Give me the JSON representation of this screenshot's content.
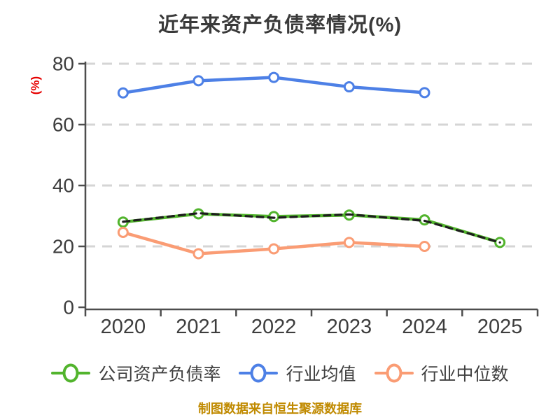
{
  "title": "近年来资产负债率情况(%)",
  "y_axis": {
    "label": "(%)",
    "label_color": "#e60000",
    "ticks": [
      0,
      20,
      40,
      60,
      80
    ],
    "max": 80
  },
  "x_axis": {
    "categories": [
      "2020",
      "2021",
      "2022",
      "2023",
      "2024",
      "2025"
    ]
  },
  "chart_data": {
    "type": "line",
    "title": "近年来资产负债率情况(%)",
    "categories": [
      "2020",
      "2021",
      "2022",
      "2023",
      "2024",
      "2025"
    ],
    "series": [
      {
        "name": "公司资产负债率",
        "color": "#52b42d",
        "values": [
          28.0,
          30.7,
          29.8,
          30.3,
          28.7,
          21.3
        ],
        "style": "solid",
        "marker": true,
        "in_legend": true
      },
      {
        "name": "unlabeled-dashed-overlay",
        "color": "#1d1d1d",
        "values": [
          28.1,
          30.9,
          29.4,
          30.5,
          28.4,
          21.3
        ],
        "style": "dashed",
        "marker": false,
        "in_legend": false
      },
      {
        "name": "行业均值",
        "color": "#4d80e6",
        "values": [
          70.4,
          74.4,
          75.5,
          72.4,
          70.5,
          null
        ],
        "style": "solid",
        "marker": true,
        "in_legend": true
      },
      {
        "name": "行业中位数",
        "color": "#fa9c74",
        "values": [
          24.6,
          17.6,
          19.2,
          21.3,
          20.0,
          null
        ],
        "style": "solid",
        "marker": true,
        "in_legend": true
      }
    ],
    "ylim": [
      0,
      80
    ],
    "yticks": [
      0,
      20,
      40,
      60,
      80
    ],
    "grid": "horizontal-dashed",
    "legend_position": "bottom"
  },
  "legend": {
    "items": [
      {
        "label": "公司资产负债率",
        "color": "#52b42d"
      },
      {
        "label": "行业均值",
        "color": "#4d80e6"
      },
      {
        "label": "行业中位数",
        "color": "#fa9c74"
      }
    ]
  },
  "footer": {
    "text": "制图数据来自恒生聚源数据库",
    "color": "#c08a00"
  },
  "colors": {
    "background": "#ffffff",
    "grid": "#d5d5d5",
    "axis": "#4d4d4d",
    "tick_label": "#3d3d3d",
    "title": "#3a3a3a"
  }
}
